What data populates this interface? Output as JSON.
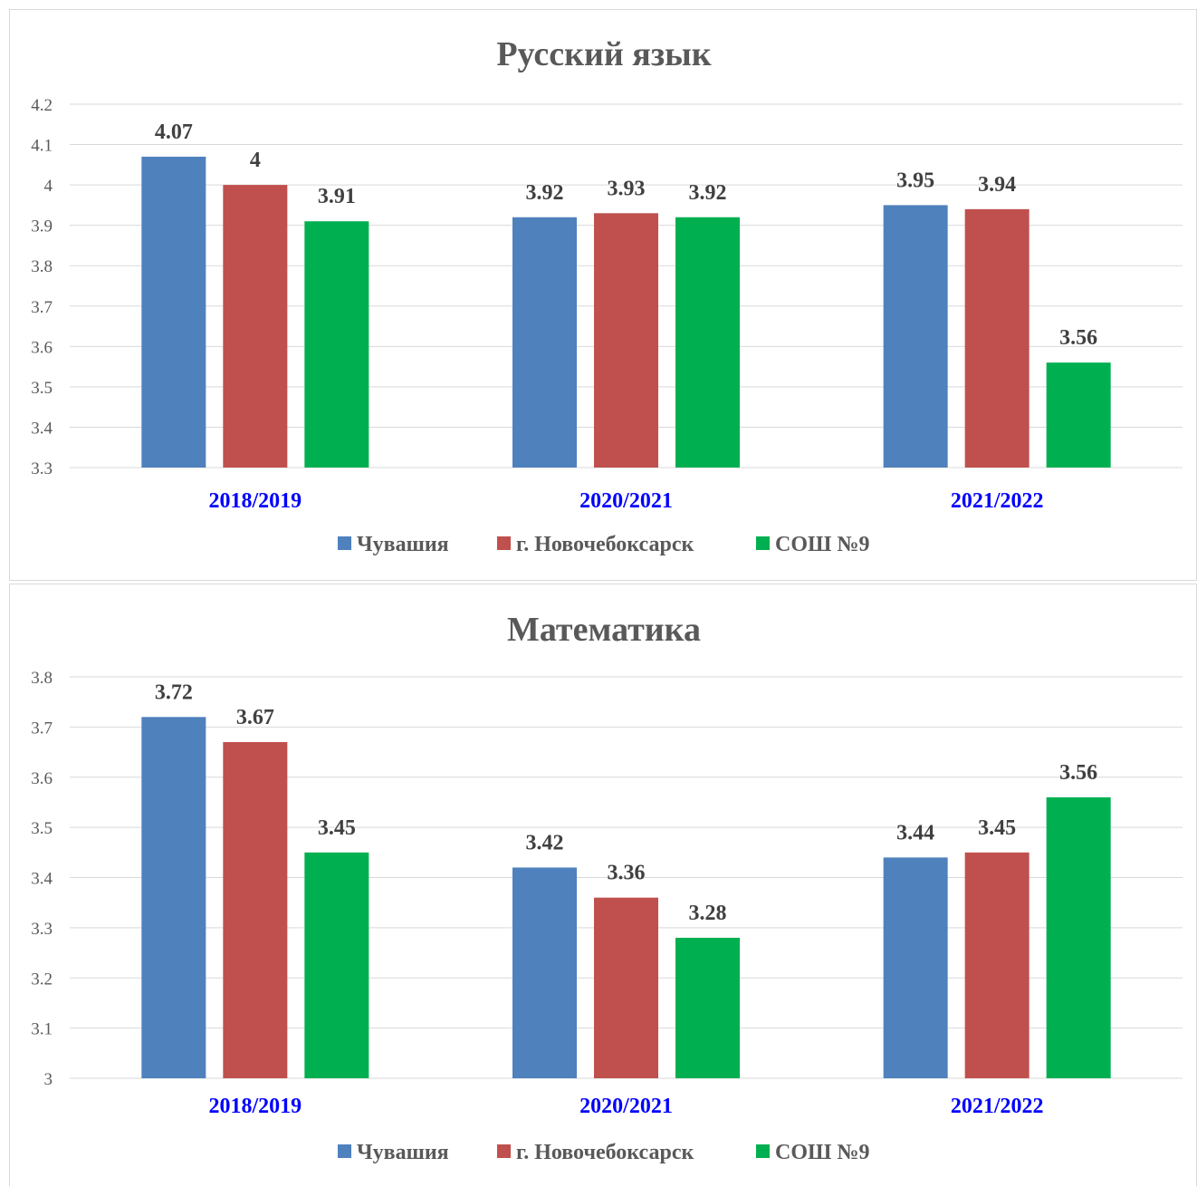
{
  "chart_data": [
    {
      "type": "bar",
      "title": "Русский язык",
      "xlabel": "",
      "ylabel": "",
      "categories": [
        "2018/2019",
        "2020/2021",
        "2021/2022"
      ],
      "series": [
        {
          "name": "Чувашия",
          "color": "#4f81bd",
          "values": [
            4.07,
            3.92,
            3.95
          ]
        },
        {
          "name": "г. Новочебоксарск",
          "color": "#c0504d",
          "values": [
            4,
            3.93,
            3.94
          ]
        },
        {
          "name": "СОШ №9",
          "color": "#00b050",
          "values": [
            3.91,
            3.92,
            3.56
          ]
        }
      ],
      "ylim": [
        3.3,
        4.2
      ],
      "yticks": [
        "3.3",
        "3.4",
        "3.5",
        "3.6",
        "3.7",
        "3.8",
        "3.9",
        "4",
        "4.1",
        "4.2"
      ],
      "grid": true,
      "legend": "bottom"
    },
    {
      "type": "bar",
      "title": "Математика",
      "xlabel": "",
      "ylabel": "",
      "categories": [
        "2018/2019",
        "2020/2021",
        "2021/2022"
      ],
      "series": [
        {
          "name": "Чувашия",
          "color": "#4f81bd",
          "values": [
            3.72,
            3.42,
            3.44
          ]
        },
        {
          "name": "г. Новочебоксарск",
          "color": "#c0504d",
          "values": [
            3.67,
            3.36,
            3.45
          ]
        },
        {
          "name": "СОШ №9",
          "color": "#00b050",
          "values": [
            3.45,
            3.28,
            3.56
          ]
        }
      ],
      "ylim": [
        3,
        3.8
      ],
      "yticks": [
        "3",
        "3.1",
        "3.2",
        "3.3",
        "3.4",
        "3.5",
        "3.6",
        "3.7",
        "3.8"
      ],
      "grid": true,
      "legend": "bottom"
    }
  ],
  "colors": {
    "category_label": "#0000ff",
    "text": "#595959",
    "data_label": "#404040",
    "grid": "#d9d9d9"
  }
}
